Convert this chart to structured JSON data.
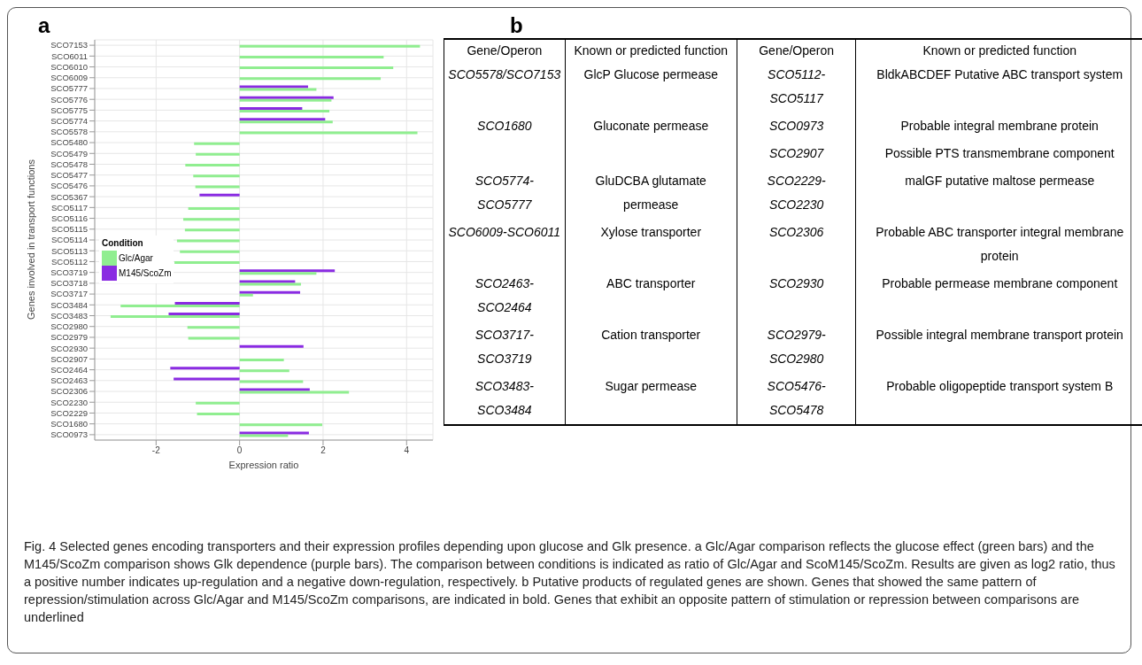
{
  "chart_data": [
    {
      "type": "bar",
      "title": "a",
      "orientation": "horizontal",
      "xlabel": "Expression ratio",
      "ylabel": "Genes involved in transport functions",
      "legend_title": "Condition",
      "legend": "left",
      "grid": true,
      "categories": [
        "SCO7153",
        "SCO6011",
        "SCO6010",
        "SCO6009",
        "SCO5777",
        "SCO5776",
        "SCO5775",
        "SCO5774",
        "SCO5578",
        "SCO5480",
        "SCO5479",
        "SCO5478",
        "SCO5477",
        "SCO5476",
        "SCO5367",
        "SCO5117",
        "SCO5116",
        "SCO5115",
        "SCO5114",
        "SCO5113",
        "SCO5112",
        "SCO3719",
        "SCO3718",
        "SCO3717",
        "SCO3484",
        "SCO3483",
        "SCO2980",
        "SCO2979",
        "SCO2930",
        "SCO2907",
        "SCO2464",
        "SCO2463",
        "SCO2306",
        "SCO2230",
        "SCO2229",
        "SCO1680",
        "SCO0973"
      ],
      "series": [
        {
          "name": "Glc/Agar",
          "color": "#90ee90",
          "values": [
            4.32,
            3.45,
            3.68,
            3.38,
            1.84,
            2.2,
            2.15,
            2.23,
            4.26,
            -1.09,
            -1.05,
            -1.3,
            -1.11,
            -1.06,
            null,
            -1.23,
            -1.35,
            -1.31,
            -1.5,
            -1.43,
            -1.56,
            1.84,
            1.47,
            0.32,
            -2.85,
            -3.09,
            -1.25,
            -1.23,
            null,
            1.06,
            1.19,
            1.52,
            2.62,
            -1.05,
            -1.02,
            1.98,
            1.16
          ]
        },
        {
          "name": "M145/ScoZm",
          "color": "#8a2be2",
          "values": [
            null,
            null,
            null,
            null,
            1.64,
            2.25,
            1.5,
            2.05,
            null,
            null,
            null,
            null,
            null,
            null,
            -0.96,
            null,
            null,
            null,
            null,
            null,
            null,
            2.28,
            1.33,
            1.45,
            -1.55,
            -1.7,
            null,
            null,
            1.53,
            null,
            -1.66,
            -1.58,
            1.68,
            null,
            null,
            null,
            1.66
          ]
        }
      ],
      "xlim": [
        -3.47,
        4.63
      ],
      "xticks": [
        -2,
        0,
        2,
        4
      ],
      "annotations": [
        "Fig. 4 Selected genes encoding transporters and their expression profiles depending upon glucose and Glk presence. a Glc/Agar comparison reflects the glucose effect (green bars) and the M145/ScoZm comparison shows Glk dependence (purple bars). The comparison between conditions is indicated as ratio of Glc/Agar and ScoM145/ScoZm. Results are given as log2 ratio, thus a positive number indicates up-regulation and a negative down-regulation, respectively. b Putative products of regulated genes are shown. Genes that showed the same pattern of repression/stimulation across Glc/Agar and M145/ScoZm comparisons, are indicated in bold. Genes that exhibit an opposite pattern of stimulation or repression between comparisons are underlined"
      ]
    },
    {
      "type": "other",
      "title": "b",
      "categories": [
        "Gene/Operon",
        "Known or predicted function",
        "Gene/Operon",
        "Known or predicted function"
      ],
      "cell_labels": [
        [
          "SCO5578/SCO7153",
          "GlcP Glucose permease",
          "SCO5112-SCO5117",
          "BldkABCDEF Putative ABC transport system"
        ],
        [
          "SCO1680",
          "Gluconate permease",
          "SCO0973",
          "Probable integral membrane protein"
        ],
        [
          null,
          null,
          "SCO2907",
          "Possible PTS transmembrane component"
        ],
        [
          "SCO5774-SCO5777",
          "GluDCBA  glutamate permease",
          "SCO2229-SCO2230",
          "malGF putative maltose permease"
        ],
        [
          "SCO6009-SCO6011",
          "Xylose transporter",
          "SCO2306",
          "Probable ABC transporter integral membrane protein"
        ],
        [
          "SCO2463-SCO2464",
          "ABC transporter",
          "SCO2930",
          "Probable permease membrane component"
        ],
        [
          "SCO3717-SCO3719",
          "Cation transporter",
          "SCO2979-SCO2980",
          "Possible integral membrane transport protein"
        ],
        [
          "SCO3483-SCO3484",
          "Sugar permease",
          "SCO5476-SCO5478",
          "Probable oligopeptide transport system B"
        ]
      ]
    }
  ]
}
